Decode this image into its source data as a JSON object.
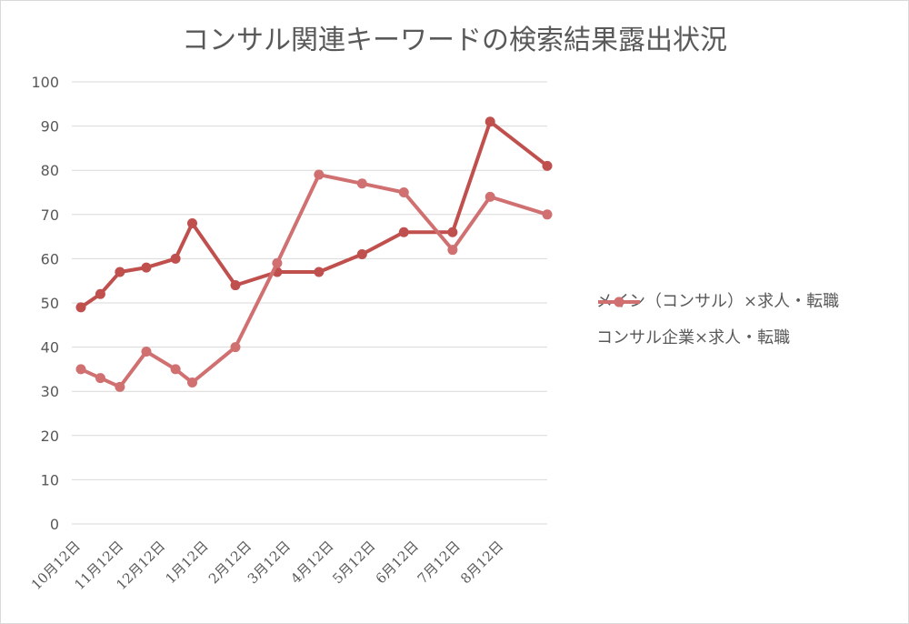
{
  "chart_data": {
    "type": "line",
    "title": "コンサル関連キーワードの検索結果露出状況",
    "xlabel": "",
    "ylabel": "",
    "ylim": [
      0,
      100
    ],
    "yticks": [
      0,
      10,
      20,
      30,
      40,
      50,
      60,
      70,
      80,
      90,
      100
    ],
    "x_tick_labels": [
      "10月12日",
      "11月12日",
      "12月12日",
      "1月12日",
      "2月12日",
      "3月12日",
      "4月12日",
      "5月12日",
      "6月12日",
      "7月12日",
      "8月12日"
    ],
    "x_tick_start": "2016-10-12",
    "x_range": [
      "2016-10-12",
      "2017-09-12"
    ],
    "grid": true,
    "legend_position": "right",
    "series": [
      {
        "name": "メイン（コンサル）×求人・転職",
        "color": "#c0504d",
        "points": [
          {
            "x": "2016-10-12",
            "y": 49
          },
          {
            "x": "2016-10-26",
            "y": 52
          },
          {
            "x": "2016-11-09",
            "y": 57
          },
          {
            "x": "2016-11-28",
            "y": 58
          },
          {
            "x": "2016-12-19",
            "y": 60
          },
          {
            "x": "2016-12-31",
            "y": 68
          },
          {
            "x": "2017-01-31",
            "y": 54
          },
          {
            "x": "2017-03-02",
            "y": 57
          },
          {
            "x": "2017-04-01",
            "y": 57
          },
          {
            "x": "2017-05-02",
            "y": 61
          },
          {
            "x": "2017-06-01",
            "y": 66
          },
          {
            "x": "2017-07-06",
            "y": 66
          },
          {
            "x": "2017-08-02",
            "y": 91
          },
          {
            "x": "2017-09-12",
            "y": 81
          }
        ]
      },
      {
        "name": "コンサル企業×求人・転職",
        "color": "#d07070",
        "points": [
          {
            "x": "2016-10-12",
            "y": 35
          },
          {
            "x": "2016-10-26",
            "y": 33
          },
          {
            "x": "2016-11-09",
            "y": 31
          },
          {
            "x": "2016-11-28",
            "y": 39
          },
          {
            "x": "2016-12-19",
            "y": 35
          },
          {
            "x": "2016-12-31",
            "y": 32
          },
          {
            "x": "2017-01-31",
            "y": 40
          },
          {
            "x": "2017-03-02",
            "y": 59
          },
          {
            "x": "2017-04-01",
            "y": 79
          },
          {
            "x": "2017-05-02",
            "y": 77
          },
          {
            "x": "2017-06-01",
            "y": 75
          },
          {
            "x": "2017-07-06",
            "y": 62
          },
          {
            "x": "2017-08-02",
            "y": 74
          },
          {
            "x": "2017-09-12",
            "y": 70
          }
        ]
      }
    ]
  }
}
